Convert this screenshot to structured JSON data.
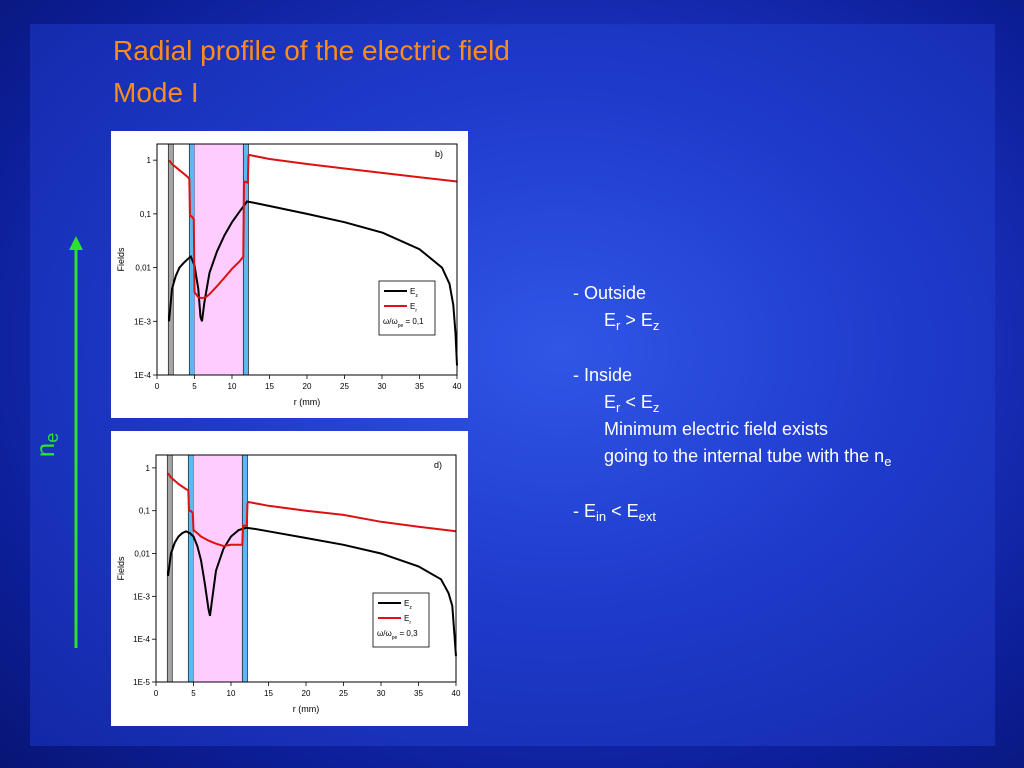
{
  "slide": {
    "title_line1": "Radial profile of the electric field",
    "title_line2": "Mode I",
    "arrow_label": "n",
    "arrow_label_sub": "e",
    "colors": {
      "title": "#ff8c1a",
      "arrow": "#2fe02f",
      "text": "#ffffff",
      "Ez": "#000000",
      "Er": "#dd1111",
      "plasma_shade": "#ffccff",
      "tube_wall": "#5bb8f0",
      "inner_wall": "#a6a6a6"
    },
    "notes": {
      "n1": "- Outside",
      "n2a": "E",
      "n2b": "r",
      "n2c": " > E",
      "n2d": "z",
      "n3": "- Inside",
      "n4a": "E",
      "n4b": "r",
      "n4c": " <  E",
      "n4d": "z",
      "n5": "Minimum electric field exists",
      "n6a": "going to the internal tube with the n",
      "n6b": "e",
      "n7a": "- E",
      "n7b": "in",
      "n7c": " <  E",
      "n7d": "ext"
    }
  },
  "chart_data": [
    {
      "type": "line",
      "panel_label": "b)",
      "xlabel": "r (mm)",
      "ylabel": "Fields",
      "log_y": true,
      "xlim": [
        0,
        40
      ],
      "ylim": [
        0.0001,
        2
      ],
      "x_ticks": [
        "0",
        "5",
        "10",
        "15",
        "20",
        "25",
        "30",
        "35",
        "40"
      ],
      "y_ticks": [
        {
          "v": 1,
          "label": "1"
        },
        {
          "v": 0.1,
          "label": "0,1"
        },
        {
          "v": 0.01,
          "label": "0,01"
        },
        {
          "v": 0.001,
          "label": "1E-3"
        },
        {
          "v": 0.0001,
          "label": "1E-4"
        }
      ],
      "regions": [
        {
          "kind": "inner_wall",
          "x0": 1.5,
          "x1": 1.6
        },
        {
          "kind": "tube_wall",
          "x0": 4.3,
          "x1": 5.0
        },
        {
          "kind": "plasma",
          "x0": 5.0,
          "x1": 11.5
        },
        {
          "kind": "tube_wall",
          "x0": 11.5,
          "x1": 12.2
        }
      ],
      "legend": {
        "Ez": "E",
        "Ez_sub": "z",
        "Er": "E",
        "Er_sub": "r",
        "ratio_prefix": "ω/ω",
        "ratio_sub": "pe",
        "ratio_value": " = 0,1"
      },
      "series": [
        {
          "name": "Ez",
          "x": [
            1.6,
            2,
            2.5,
            3,
            3.5,
            4,
            4.5,
            5,
            5.5,
            5.8,
            6,
            6.3,
            7,
            8,
            9,
            10,
            11,
            12,
            13,
            15,
            20,
            25,
            30,
            35,
            38,
            39,
            39.5,
            39.8,
            40
          ],
          "y": [
            0.001,
            0.004,
            0.007,
            0.01,
            0.012,
            0.014,
            0.016,
            0.011,
            0.004,
            0.0012,
            0.001,
            0.0022,
            0.008,
            0.02,
            0.04,
            0.07,
            0.11,
            0.17,
            0.16,
            0.14,
            0.1,
            0.07,
            0.045,
            0.022,
            0.01,
            0.005,
            0.002,
            0.0006,
            0.00015
          ]
        },
        {
          "name": "Er",
          "x": [
            1.6,
            2,
            3,
            4,
            4.3,
            4.4,
            4.6,
            4.9,
            5,
            5.5,
            6,
            6.5,
            7,
            8,
            9,
            10,
            11,
            11.5,
            11.6,
            12.1,
            12.2,
            12.3,
            15,
            20,
            25,
            30,
            35,
            40
          ],
          "y": [
            1.0,
            0.85,
            0.65,
            0.5,
            0.45,
            0.09,
            0.09,
            0.08,
            0.0035,
            0.0028,
            0.0027,
            0.0028,
            0.0032,
            0.0045,
            0.0065,
            0.0095,
            0.013,
            0.016,
            0.4,
            0.38,
            1.2,
            1.25,
            1.05,
            0.85,
            0.7,
            0.58,
            0.48,
            0.4
          ]
        }
      ]
    },
    {
      "type": "line",
      "panel_label": "d)",
      "xlabel": "r (mm)",
      "ylabel": "Fields",
      "log_y": true,
      "xlim": [
        0,
        40
      ],
      "ylim": [
        1e-05,
        2
      ],
      "x_ticks": [
        "0",
        "5",
        "10",
        "15",
        "20",
        "25",
        "30",
        "35",
        "40"
      ],
      "y_ticks": [
        {
          "v": 1,
          "label": "1"
        },
        {
          "v": 0.1,
          "label": "0,1"
        },
        {
          "v": 0.01,
          "label": "0,01"
        },
        {
          "v": 0.001,
          "label": "1E-3"
        },
        {
          "v": 0.0001,
          "label": "1E-4"
        },
        {
          "v": 1e-05,
          "label": "1E-5"
        }
      ],
      "regions": [
        {
          "kind": "inner_wall",
          "x0": 1.5,
          "x1": 1.6
        },
        {
          "kind": "tube_wall",
          "x0": 4.3,
          "x1": 5.0
        },
        {
          "kind": "plasma",
          "x0": 5.0,
          "x1": 11.5
        },
        {
          "kind": "tube_wall",
          "x0": 11.5,
          "x1": 12.2
        }
      ],
      "legend": {
        "Ez": "E",
        "Ez_sub": "z",
        "Er": "E",
        "Er_sub": "r",
        "ratio_prefix": "ω/ω",
        "ratio_sub": "pe",
        "ratio_value": " = 0,3"
      },
      "series": [
        {
          "name": "Ez",
          "x": [
            1.6,
            2,
            2.5,
            3,
            3.5,
            4,
            4.5,
            5,
            5.5,
            6,
            6.5,
            7,
            7.2,
            7.5,
            8,
            9,
            10,
            11,
            12,
            13,
            15,
            20,
            25,
            30,
            35,
            38,
            39,
            39.5,
            40
          ],
          "y": [
            0.003,
            0.01,
            0.018,
            0.025,
            0.03,
            0.033,
            0.03,
            0.025,
            0.015,
            0.007,
            0.002,
            0.0005,
            0.00035,
            0.0009,
            0.004,
            0.013,
            0.025,
            0.035,
            0.04,
            0.038,
            0.033,
            0.023,
            0.016,
            0.01,
            0.005,
            0.0025,
            0.0012,
            0.0006,
            4e-05
          ]
        },
        {
          "name": "Er",
          "x": [
            1.6,
            2,
            3,
            4,
            4.3,
            4.4,
            4.6,
            4.9,
            5,
            5.5,
            6,
            7,
            8,
            9,
            10,
            11,
            11.5,
            11.6,
            12.1,
            12.2,
            12.3,
            15,
            20,
            25,
            30,
            35,
            40
          ],
          "y": [
            0.75,
            0.6,
            0.42,
            0.32,
            0.3,
            0.1,
            0.1,
            0.09,
            0.035,
            0.03,
            0.025,
            0.02,
            0.017,
            0.015,
            0.016,
            0.016,
            0.016,
            0.045,
            0.045,
            0.15,
            0.16,
            0.13,
            0.1,
            0.08,
            0.055,
            0.042,
            0.033
          ]
        }
      ]
    }
  ]
}
